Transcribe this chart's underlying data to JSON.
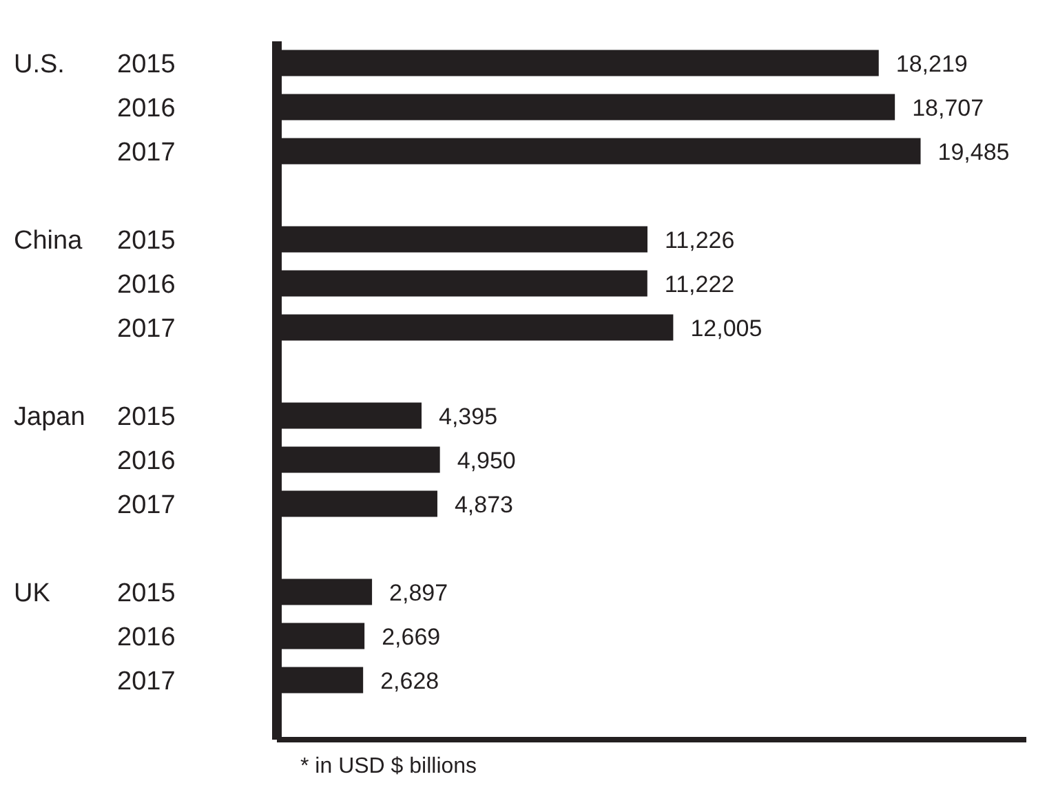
{
  "chart_data": {
    "type": "bar",
    "orientation": "horizontal",
    "categories": [
      "U.S. 2015",
      "2016",
      "2017",
      null,
      "China 2015",
      "2016",
      "2017",
      null,
      "Japan 2015",
      "2016",
      "2017",
      null,
      "UK 2015",
      "2016",
      "2017"
    ],
    "values": [
      18219,
      18707,
      19485,
      null,
      11226,
      11222,
      12005,
      null,
      4395,
      4950,
      4873,
      null,
      2897,
      2669,
      2628
    ],
    "value_labels": [
      "18,219",
      "18,707",
      "19,485",
      null,
      "11,226",
      "11,222",
      "12,005",
      null,
      "4,395",
      "4,950",
      "4,873",
      null,
      "2,897",
      "2,669",
      "2,628"
    ],
    "color": "#231f20",
    "annotations": [
      "* in USD $ billions"
    ]
  }
}
